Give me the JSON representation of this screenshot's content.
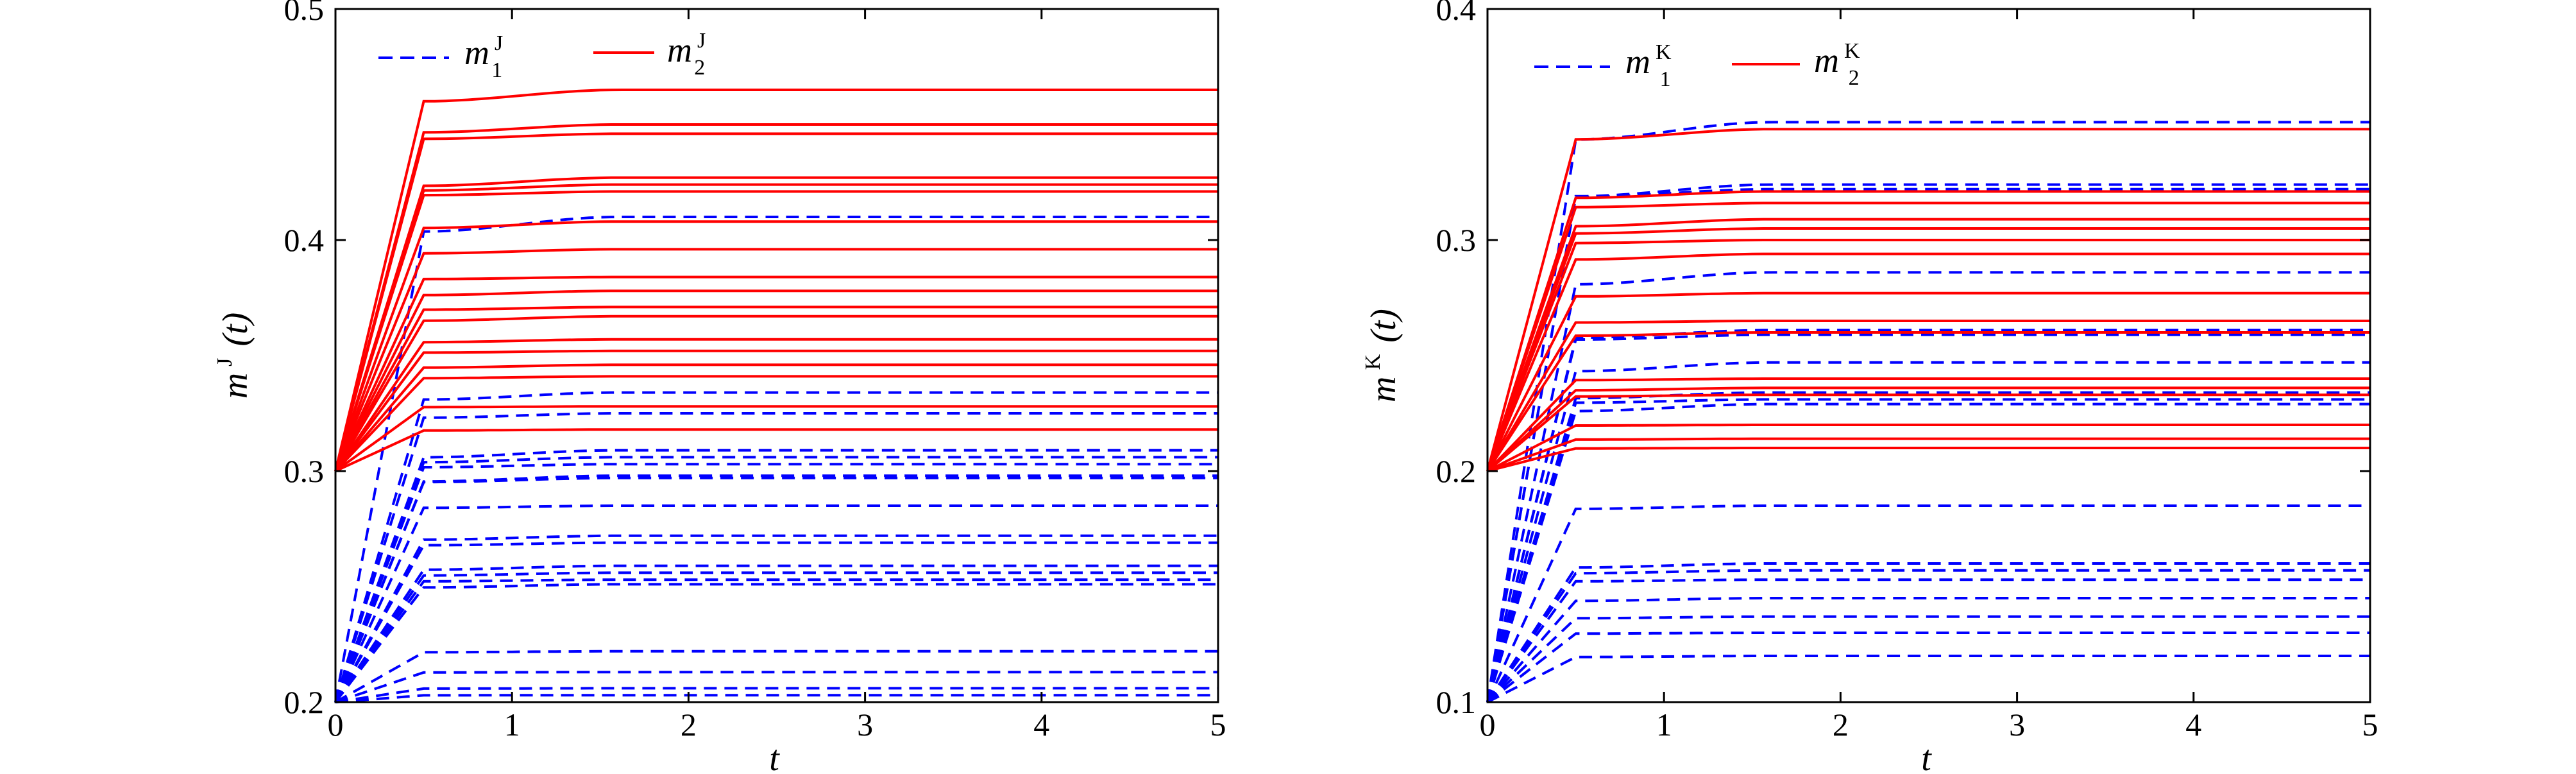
{
  "chart_data": [
    {
      "type": "line",
      "ylabel": {
        "main": "m",
        "sup": "J",
        "arg": "(t)"
      },
      "xlabel": "t",
      "xlim": [
        0,
        5
      ],
      "ylim": [
        0.2,
        0.5
      ],
      "xticks": [
        0,
        1,
        2,
        3,
        4,
        5
      ],
      "yticks": [
        0.2,
        0.3,
        0.4,
        0.5
      ],
      "ytick_labels": [
        "0.2",
        "0.3",
        "0.4",
        "0.5"
      ],
      "xtick_labels": [
        "0",
        "1",
        "2",
        "3",
        "4",
        "5"
      ],
      "legend": {
        "position": "top-left",
        "entries": [
          {
            "main": "m",
            "sup": "J",
            "sub": "1",
            "style": "dashed",
            "color": "#0000ff"
          },
          {
            "main": "m",
            "sup": "J",
            "sub": "2",
            "style": "solid",
            "color": "#ff0000"
          }
        ]
      },
      "series": [
        {
          "group": "m1",
          "color": "#0000ff",
          "dash": true,
          "start": 0.2,
          "knee_t": 0.5,
          "finals": [
            0.41,
            0.334,
            0.325,
            0.309,
            0.306,
            0.303,
            0.298,
            0.297,
            0.285,
            0.272,
            0.269,
            0.259,
            0.256,
            0.253,
            0.251,
            0.222,
            0.213,
            0.206,
            0.203
          ]
        },
        {
          "group": "m2",
          "color": "#ff0000",
          "dash": false,
          "start": 0.3,
          "knee_t": 0.5,
          "finals": [
            0.465,
            0.45,
            0.446,
            0.427,
            0.424,
            0.421,
            0.408,
            0.396,
            0.384,
            0.378,
            0.371,
            0.367,
            0.357,
            0.352,
            0.346,
            0.341,
            0.328,
            0.318
          ]
        }
      ]
    },
    {
      "type": "line",
      "ylabel": {
        "main": "m",
        "sup": "K",
        "arg": "(t)"
      },
      "xlabel": "t",
      "xlim": [
        0,
        5
      ],
      "ylim": [
        0.1,
        0.4
      ],
      "xticks": [
        0,
        1,
        2,
        3,
        4,
        5
      ],
      "yticks": [
        0.1,
        0.2,
        0.3,
        0.4
      ],
      "ytick_labels": [
        "0.1",
        "0.2",
        "0.3",
        "0.4"
      ],
      "xtick_labels": [
        "0",
        "1",
        "2",
        "3",
        "4",
        "5"
      ],
      "legend": {
        "position": "top-left",
        "entries": [
          {
            "main": "m",
            "sup": "K",
            "sub": "1",
            "style": "dashed",
            "color": "#0000ff"
          },
          {
            "main": "m",
            "sup": "K",
            "sub": "2",
            "style": "solid",
            "color": "#ff0000"
          }
        ]
      },
      "series": [
        {
          "group": "m1",
          "color": "#0000ff",
          "dash": true,
          "start": 0.1,
          "knee_t": 0.5,
          "finals": [
            0.351,
            0.324,
            0.322,
            0.286,
            0.261,
            0.259,
            0.247,
            0.234,
            0.231,
            0.229,
            0.185,
            0.16,
            0.157,
            0.153,
            0.145,
            0.137,
            0.13,
            0.12
          ]
        },
        {
          "group": "m2",
          "color": "#ff0000",
          "dash": false,
          "start": 0.2,
          "knee_t": 0.5,
          "finals": [
            0.348,
            0.321,
            0.316,
            0.309,
            0.305,
            0.3,
            0.294,
            0.277,
            0.265,
            0.26,
            0.24,
            0.236,
            0.233,
            0.22,
            0.214,
            0.21
          ]
        }
      ]
    }
  ]
}
